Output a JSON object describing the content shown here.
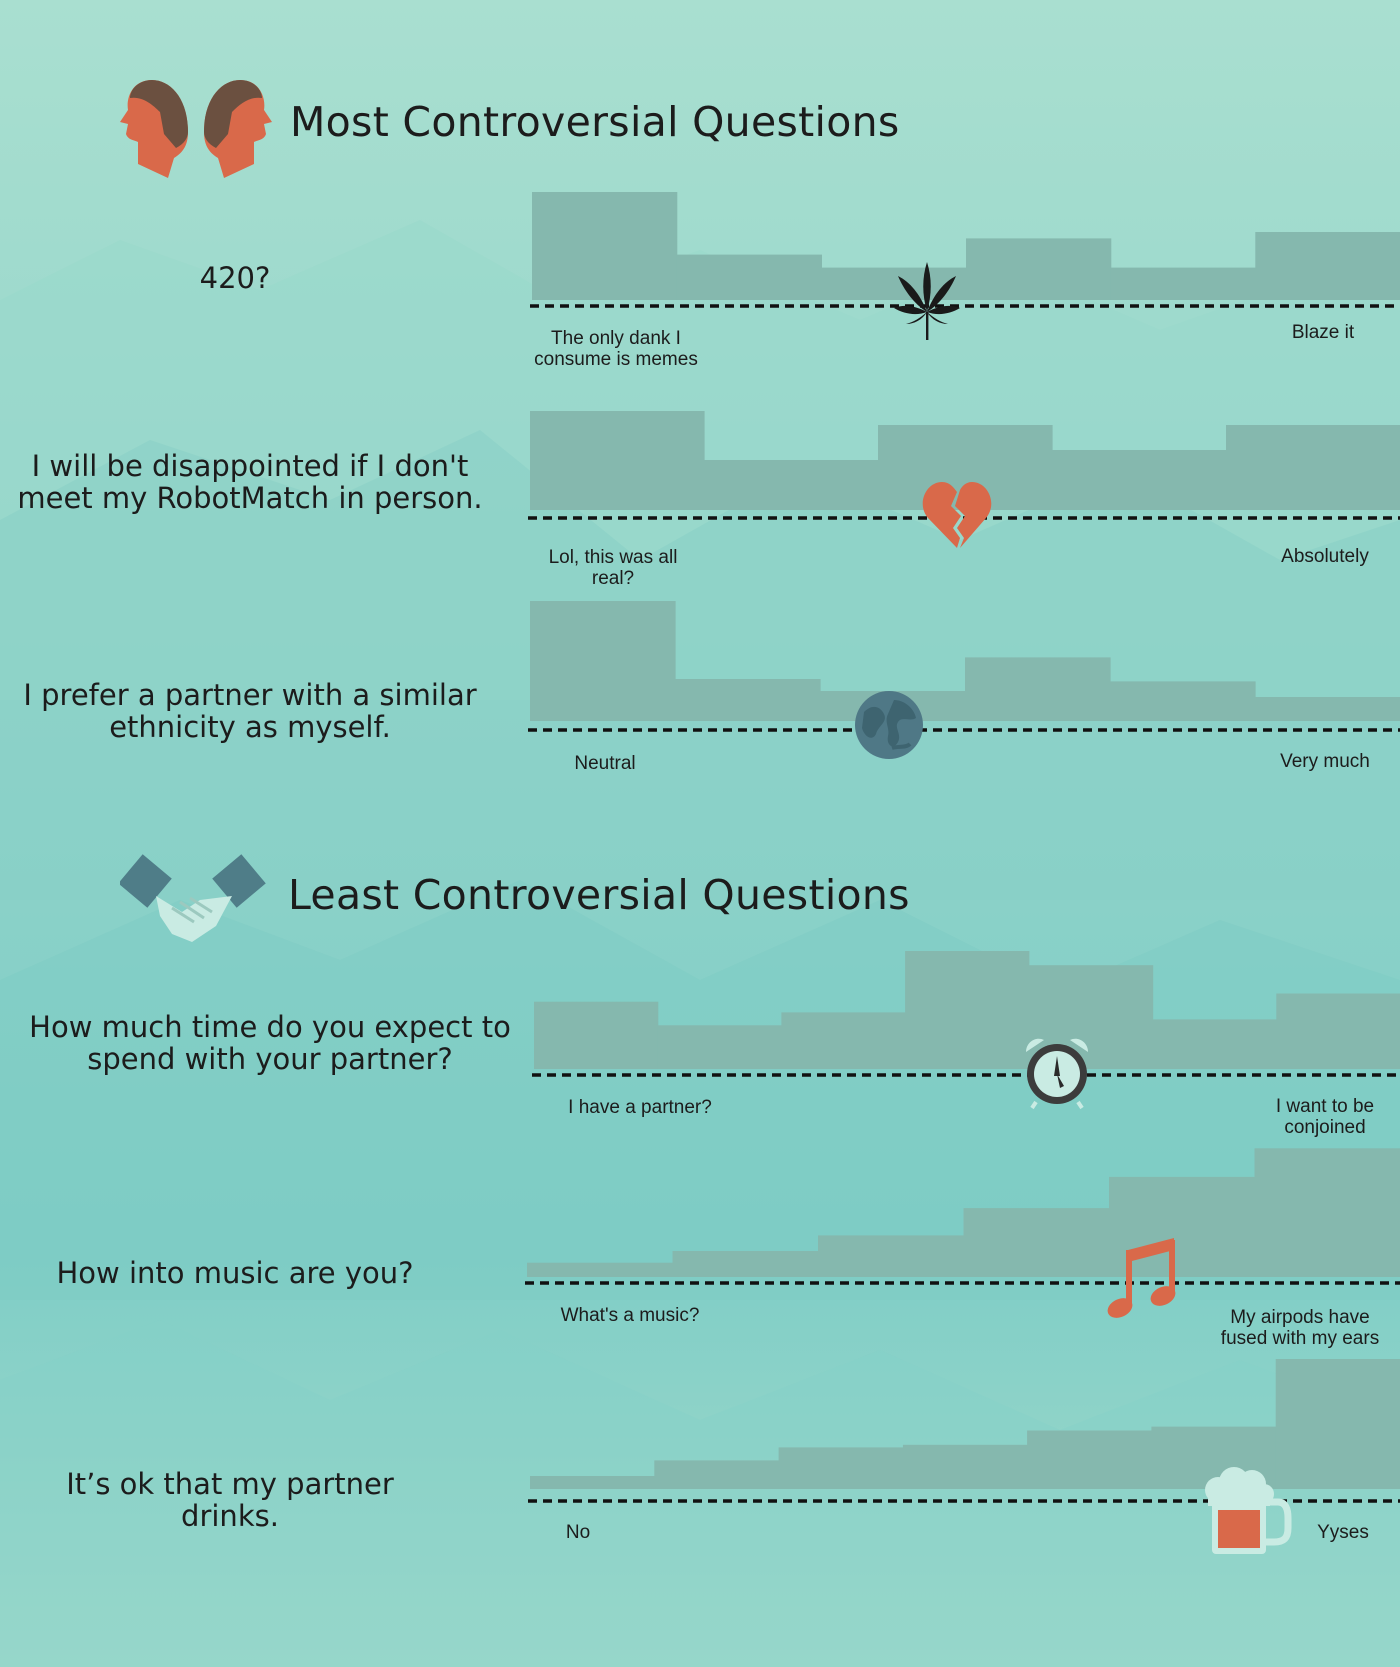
{
  "sections": [
    {
      "title": "Most Controversial Questions",
      "icon": "two-heads-icon"
    },
    {
      "title": "Least Controversial Questions",
      "icon": "handshake-icon"
    }
  ],
  "colors": {
    "background": "#8fd3c9",
    "bar": "#85b8ae",
    "accent": "#d9694a",
    "text": "#1c1c1c"
  },
  "chart_data": [
    {
      "type": "bar",
      "question": "420?",
      "low_label": "The only dank I consume is memes",
      "high_label": "Blaze it",
      "icon": "cannabis-leaf-icon",
      "values": [
        1.0,
        0.42,
        0.3,
        0.57,
        0.3,
        0.63
      ],
      "ylim": [
        0,
        1
      ]
    },
    {
      "type": "bar",
      "question": "I will be disappointed if I don't meet my RobotMatch in person.",
      "low_label": "Lol, this was all real?",
      "high_label": "Absolutely",
      "icon": "broken-heart-icon",
      "values": [
        0.99,
        0.5,
        0.85,
        0.6,
        0.85
      ],
      "ylim": [
        0,
        1
      ]
    },
    {
      "type": "bar",
      "question": "I prefer a partner with a similar ethnicity as myself.",
      "low_label": "Neutral",
      "high_label": "Very much",
      "icon": "globe-icon",
      "values": [
        1.0,
        0.35,
        0.25,
        0.53,
        0.33,
        0.2
      ],
      "ylim": [
        0,
        1
      ]
    },
    {
      "type": "bar",
      "question": "How much time do you expect to spend with your partner?",
      "low_label": "I have a partner?",
      "high_label": "I want to be conjoined",
      "icon": "alarm-clock-icon",
      "values": [
        0.57,
        0.37,
        0.48,
        1.0,
        0.88,
        0.42,
        0.64
      ],
      "ylim": [
        0,
        1
      ]
    },
    {
      "type": "bar",
      "question": "How into music are you?",
      "low_label": "What's a music?",
      "high_label": "My airpods have fused with my ears",
      "icon": "music-note-icon",
      "values": [
        0.11,
        0.2,
        0.32,
        0.53,
        0.77,
        0.99
      ],
      "ylim": [
        0,
        1
      ]
    },
    {
      "type": "bar",
      "question": "It’s ok that my partner drinks.",
      "low_label": "No",
      "high_label": "Yyses",
      "icon": "beer-mug-icon",
      "values": [
        0.1,
        0.22,
        0.32,
        0.34,
        0.45,
        0.48,
        1.0
      ],
      "ylim": [
        0,
        1
      ]
    }
  ]
}
